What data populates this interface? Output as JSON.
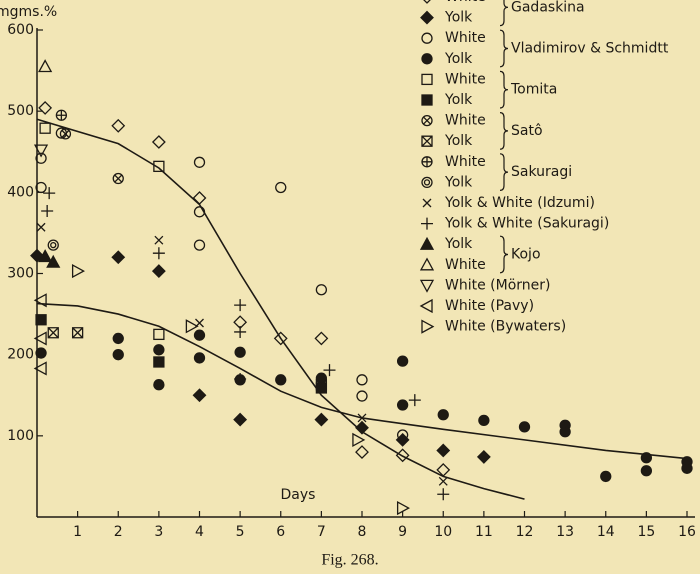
{
  "chart_data": {
    "type": "scatter",
    "y_label": "mgms.%",
    "x_label": "Days",
    "caption": "Fig. 268.",
    "xlim": [
      0,
      16
    ],
    "ylim": [
      0,
      600
    ],
    "xticks": [
      1,
      2,
      3,
      4,
      5,
      6,
      7,
      8,
      9,
      10,
      11,
      12,
      13,
      14,
      15,
      16
    ],
    "yticks": [
      100,
      200,
      300,
      400,
      500,
      600
    ],
    "grid": false,
    "color": "#1e1a14",
    "groups": [
      {
        "name": "Gadaskina",
        "series": [
          {
            "name": "White",
            "marker": "diamond-open",
            "x": [
              0.2,
              2,
              3,
              4,
              5,
              6,
              7,
              8,
              9,
              10
            ],
            "values": [
              504,
              482,
              462,
              393,
              240,
              220,
              220,
              80,
              76,
              58
            ]
          },
          {
            "name": "Yolk",
            "marker": "diamond-filled",
            "x": [
              0,
              2,
              3,
              4,
              5,
              7,
              8,
              9,
              10,
              11
            ],
            "values": [
              322,
              320,
              303,
              150,
              120,
              120,
              110,
              95,
              82,
              74
            ]
          }
        ]
      },
      {
        "name": "Vladimirov & Schmidtt",
        "series": [
          {
            "name": "White",
            "marker": "circle-open",
            "x": [
              0.1,
              0.1,
              0.6,
              4,
              4,
              4,
              6,
              7,
              8,
              8,
              9
            ],
            "values": [
              442,
              406,
              473,
              437,
              335,
              376,
              406,
              280,
              169,
              149,
              101
            ]
          },
          {
            "name": "Yolk",
            "marker": "circle-filled",
            "x": [
              0.1,
              2,
              2,
              3,
              3,
              4,
              4,
              5,
              5,
              6,
              7,
              9,
              9,
              10,
              11,
              12,
              13,
              13,
              14,
              15,
              15,
              16,
              16
            ],
            "values": [
              202,
              220,
              200,
              206,
              163,
              224,
              196,
              203,
              169,
              169,
              171,
              192,
              138,
              126,
              119,
              111,
              113,
              105,
              50,
              73,
              57,
              68,
              60
            ]
          }
        ]
      },
      {
        "name": "Tomita",
        "series": [
          {
            "name": "White",
            "marker": "square-open",
            "x": [
              0.2,
              3,
              3
            ],
            "values": [
              479,
              432,
              225
            ]
          },
          {
            "name": "Yolk",
            "marker": "square-filled",
            "x": [
              0.1,
              3,
              7
            ],
            "values": [
              243,
              191,
              159
            ]
          }
        ]
      },
      {
        "name": "Satô",
        "series": [
          {
            "name": "White",
            "marker": "circle-x",
            "x": [
              0.7,
              2
            ],
            "values": [
              472,
              417
            ]
          },
          {
            "name": "Yolk",
            "marker": "square-x",
            "x": [
              0.4,
              1,
              7
            ],
            "values": [
              227,
              227,
              163
            ]
          }
        ]
      },
      {
        "name": "Sakuragi",
        "series": [
          {
            "name": "White",
            "marker": "circle-plus",
            "x": [
              0.6
            ],
            "values": [
              495
            ]
          },
          {
            "name": "Yolk",
            "marker": "circle-dot",
            "x": [
              0.4
            ],
            "values": [
              335
            ]
          }
        ]
      },
      {
        "series": [
          {
            "name": "Yolk & White (Idzumi)",
            "marker": "x",
            "x": [
              0.1,
              3,
              4,
              8,
              10
            ],
            "values": [
              357,
              341,
              239,
              122,
              44
            ]
          },
          {
            "name": "Yolk & White (Sakuragi)",
            "marker": "plus",
            "x": [
              0.3,
              0.25,
              3,
              5,
              5,
              5,
              7.2,
              9.3,
              10
            ],
            "values": [
              399,
              377,
              325,
              261,
              228,
              170,
              181,
              144,
              28
            ]
          }
        ]
      },
      {
        "name": "Kojo",
        "series": [
          {
            "name": "Yolk",
            "marker": "triangle-filled",
            "x": [
              0.2,
              0.4
            ],
            "values": [
              321,
              314
            ]
          },
          {
            "name": "White",
            "marker": "triangle-open",
            "x": [
              0.2
            ],
            "values": [
              555
            ]
          }
        ]
      },
      {
        "series": [
          {
            "name": "White (Mörner)",
            "marker": "triangle-down",
            "x": [
              0.1
            ],
            "values": [
              452
            ]
          },
          {
            "name": "White (Pavy)",
            "marker": "triangle-left",
            "x": [
              0.1,
              0.1,
              0.1
            ],
            "values": [
              267,
              183,
              220
            ]
          },
          {
            "name": "White (Bywaters)",
            "marker": "triangle-right",
            "x": [
              1,
              3.8,
              7.9,
              9
            ],
            "values": [
              303,
              235,
              95,
              11
            ]
          }
        ]
      }
    ],
    "curves": [
      {
        "x": [
          0,
          2,
          3,
          4,
          5,
          6,
          7,
          8,
          9,
          10,
          11,
          12
        ],
        "values": [
          490,
          460,
          430,
          385,
          300,
          220,
          150,
          105,
          75,
          50,
          35,
          22
        ]
      },
      {
        "x": [
          0,
          1,
          2,
          3,
          4,
          5,
          6,
          7,
          8,
          9,
          10,
          12,
          14,
          16
        ],
        "values": [
          263,
          260,
          250,
          235,
          210,
          183,
          155,
          135,
          122,
          115,
          108,
          95,
          82,
          72
        ]
      }
    ]
  }
}
